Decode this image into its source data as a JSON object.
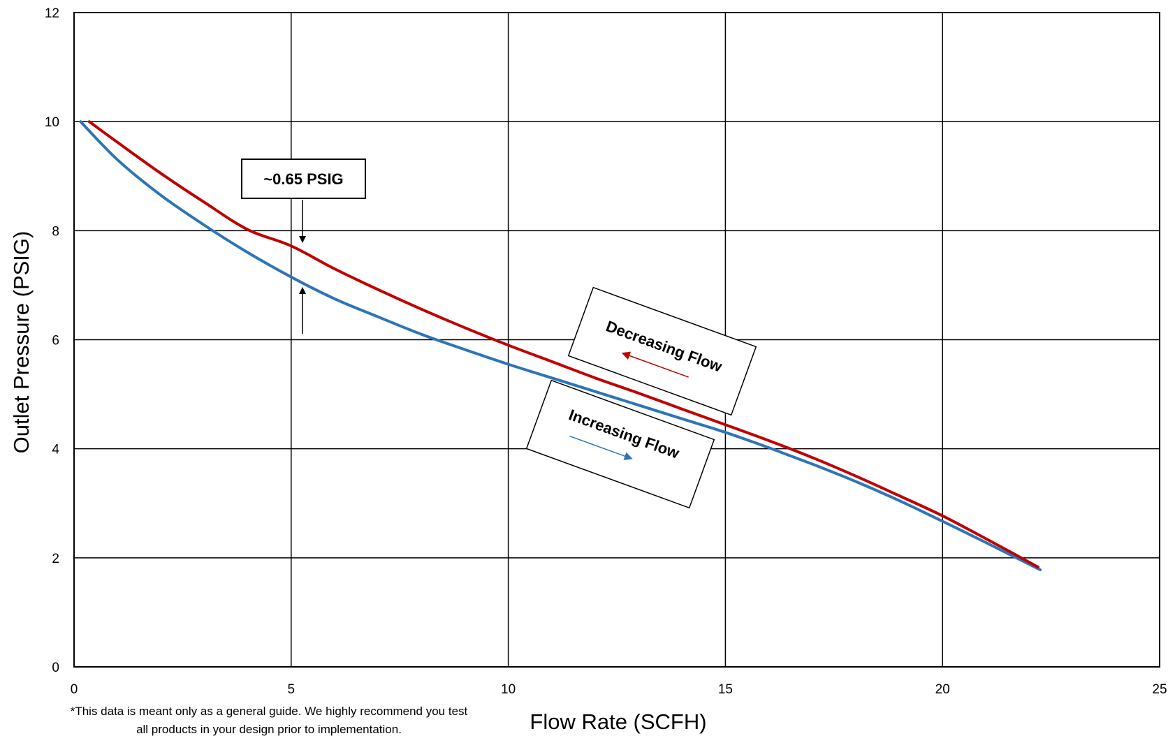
{
  "chart_data": {
    "type": "line",
    "title": "",
    "xlabel": "Flow Rate (SCFH)",
    "ylabel": "Outlet Pressure (PSIG)",
    "xlim": [
      0,
      25
    ],
    "ylim": [
      0,
      12
    ],
    "xticks": [
      "0",
      "5",
      "10",
      "15",
      "20",
      "25"
    ],
    "yticks": [
      "0",
      "2",
      "4",
      "6",
      "8",
      "10",
      "12"
    ],
    "grid": true,
    "series": [
      {
        "name": "Decreasing Flow",
        "color": "#c00000",
        "x": [
          0.35,
          1,
          2,
          3,
          4,
          5,
          6,
          7,
          8,
          9,
          10,
          11,
          12,
          13,
          14,
          15,
          16,
          17,
          18,
          19,
          20,
          21,
          22.2
        ],
        "y": [
          10.0,
          9.62,
          9.05,
          8.52,
          8.02,
          7.72,
          7.3,
          6.92,
          6.56,
          6.22,
          5.9,
          5.6,
          5.3,
          5.02,
          4.73,
          4.44,
          4.15,
          3.84,
          3.5,
          3.14,
          2.77,
          2.35,
          1.83
        ]
      },
      {
        "name": "Increasing Flow",
        "color": "#2e75b6",
        "x": [
          0.15,
          1,
          2,
          3,
          4,
          5,
          6,
          7,
          8,
          9,
          10,
          11,
          12,
          13,
          14,
          15,
          16,
          17,
          18,
          19,
          20,
          21,
          22.25
        ],
        "y": [
          10.0,
          9.3,
          8.65,
          8.1,
          7.6,
          7.15,
          6.75,
          6.42,
          6.1,
          5.82,
          5.55,
          5.3,
          5.05,
          4.8,
          4.55,
          4.3,
          4.02,
          3.72,
          3.4,
          3.05,
          2.67,
          2.28,
          1.78
        ]
      }
    ],
    "annotations": [
      {
        "text": "~0.65 PSIG",
        "x": 5.3,
        "y_top": 7.7,
        "y_bottom": 7.06
      },
      {
        "text": "Decreasing Flow",
        "arrow_direction": "left",
        "color": "#c00000"
      },
      {
        "text": "Increasing Flow",
        "arrow_direction": "right",
        "color": "#2e75b6"
      }
    ],
    "footnote_lines": [
      "*This data is meant only as a general guide. We highly recommend you test",
      "all products in your design prior to implementation."
    ]
  }
}
